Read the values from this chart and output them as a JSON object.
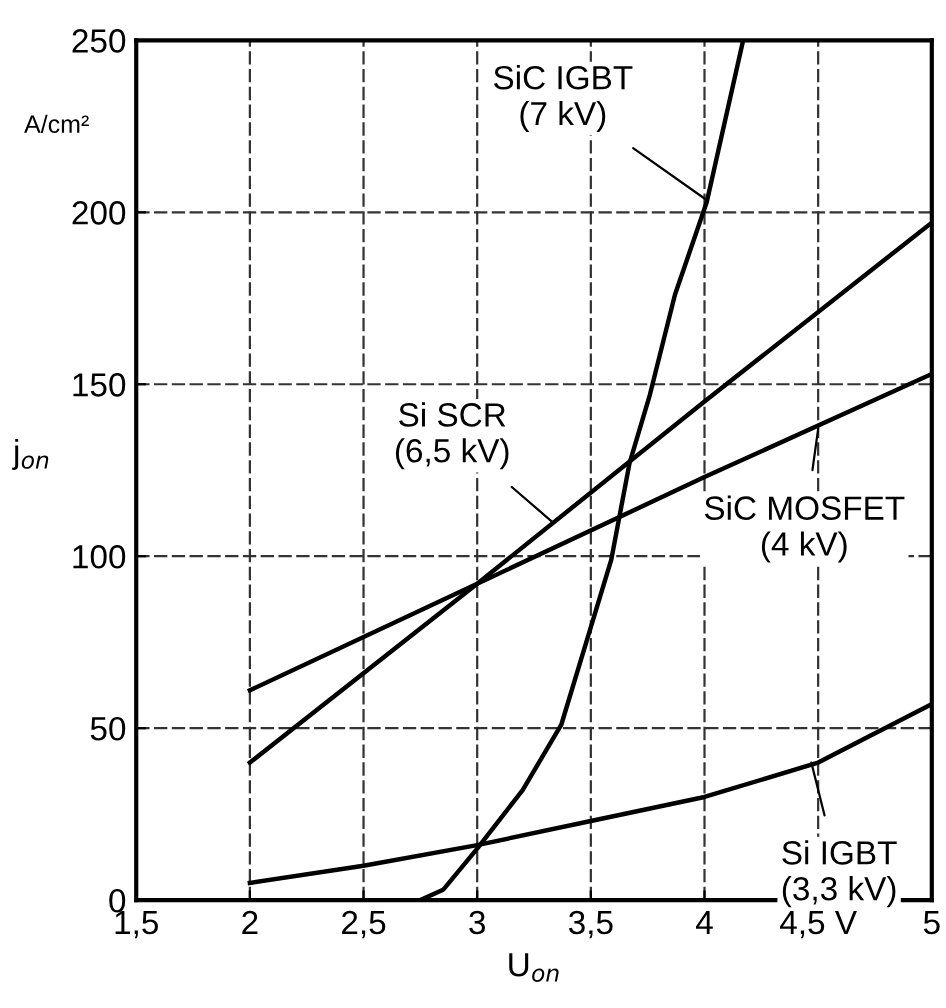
{
  "chart_data": {
    "type": "line",
    "xlabel": "U$_{on}$",
    "ylabel": "j$_{on}$",
    "xlim": [
      1.5,
      5
    ],
    "ylim": [
      0,
      250
    ],
    "xticks": [
      {
        "value": 1.5,
        "label": "1,5"
      },
      2,
      {
        "value": 2.5,
        "label": "2,5"
      },
      3,
      {
        "value": 3.5,
        "label": "3,5"
      },
      4,
      {
        "value": 4.5,
        "label": "4,5 V"
      },
      5
    ],
    "yticks": [
      0,
      50,
      100,
      150,
      200,
      250
    ],
    "grid": true,
    "marker": "none",
    "line_style": "solid",
    "series": [
      {
        "color": "#000000",
        "x": [
          2.75,
          2.85,
          3,
          3.2,
          3.37,
          3.48,
          3.59,
          3.67,
          3.76,
          3.87,
          4.01,
          4.17
        ],
        "values": [
          0,
          3,
          15,
          32,
          51,
          75,
          99,
          127,
          147,
          176,
          203,
          250
        ]
      },
      {
        "color": "#000000",
        "x": [
          2,
          3,
          4,
          5
        ],
        "values": [
          40,
          92,
          145,
          197
        ]
      },
      {
        "color": "#000000",
        "x": [
          2,
          3,
          4,
          5
        ],
        "values": [
          61,
          92,
          123,
          153
        ]
      },
      {
        "color": "#000000",
        "x": [
          2,
          2.5,
          3,
          3.5,
          4,
          4.5,
          5
        ],
        "values": [
          5,
          10,
          16,
          23,
          30,
          40,
          57
        ]
      }
    ],
    "annotations": [
      {
        "text": "SiC IGBT\n(7 kV)",
        "x": 4.0,
        "y": 204
      },
      {
        "text": "Si SCR\n(6,5 kV)",
        "x": 3.33,
        "y": 110
      },
      {
        "text": "SiC MOSFET\n(4 kV)",
        "x": 4.5,
        "y": 137
      },
      {
        "text": "Si IGBT\n(3,3 kV)",
        "x": 4.47,
        "y": 40
      },
      "A/cm²"
    ]
  }
}
